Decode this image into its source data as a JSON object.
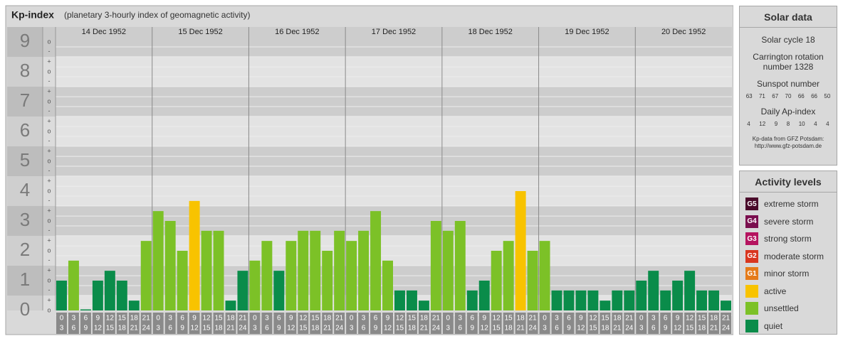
{
  "chart_data": {
    "type": "bar",
    "title": "Kp-index",
    "subtitle": "(planetary 3-hourly index of geomagnetic activity)",
    "ylim": [
      0,
      9.5
    ],
    "yticks": [
      0,
      1,
      2,
      3,
      4,
      5,
      6,
      7,
      8,
      9
    ],
    "minor_ticks": [
      {
        "value": 9,
        "label": "o"
      },
      {
        "value": 8.67,
        "label": "-"
      },
      {
        "value": 8.33,
        "label": "+"
      },
      {
        "value": 8,
        "label": "o"
      },
      {
        "value": 7.67,
        "label": "-"
      },
      {
        "value": 7.33,
        "label": "+"
      },
      {
        "value": 7,
        "label": "o"
      },
      {
        "value": 6.67,
        "label": "-"
      },
      {
        "value": 6.33,
        "label": "+"
      },
      {
        "value": 6,
        "label": "o"
      },
      {
        "value": 5.67,
        "label": "-"
      },
      {
        "value": 5.33,
        "label": "+"
      },
      {
        "value": 5,
        "label": "o"
      },
      {
        "value": 4.67,
        "label": "-"
      },
      {
        "value": 4.33,
        "label": "+"
      },
      {
        "value": 4,
        "label": "o"
      },
      {
        "value": 3.67,
        "label": "-"
      },
      {
        "value": 3.33,
        "label": "+"
      },
      {
        "value": 3,
        "label": "o"
      },
      {
        "value": 2.67,
        "label": "-"
      },
      {
        "value": 2.33,
        "label": "+"
      },
      {
        "value": 2,
        "label": "o"
      },
      {
        "value": 1.67,
        "label": "-"
      },
      {
        "value": 1.33,
        "label": "+"
      },
      {
        "value": 1,
        "label": "o"
      },
      {
        "value": 0.67,
        "label": "-"
      },
      {
        "value": 0.33,
        "label": "+"
      },
      {
        "value": 0,
        "label": "o"
      }
    ],
    "hour_labels": [
      [
        "0",
        "3"
      ],
      [
        "3",
        "6"
      ],
      [
        "6",
        "9"
      ],
      [
        "9",
        "12"
      ],
      [
        "12",
        "15"
      ],
      [
        "15",
        "18"
      ],
      [
        "18",
        "21"
      ],
      [
        "21",
        "24"
      ]
    ],
    "days": [
      {
        "date": "14 Dec 1952",
        "values": [
          1,
          1.67,
          0,
          1,
          1.33,
          1,
          0.33,
          2.33
        ],
        "colors": [
          "#0a8c4a",
          "#7cc127",
          "#0a8c4a",
          "#0a8c4a",
          "#0a8c4a",
          "#0a8c4a",
          "#0a8c4a",
          "#7cc127"
        ]
      },
      {
        "date": "15 Dec 1952",
        "values": [
          3.33,
          3,
          2,
          3.67,
          2.67,
          2.67,
          0.33,
          1.33
        ],
        "colors": [
          "#7cc127",
          "#7cc127",
          "#7cc127",
          "#f8c300",
          "#7cc127",
          "#7cc127",
          "#0a8c4a",
          "#0a8c4a"
        ]
      },
      {
        "date": "16 Dec 1952",
        "values": [
          1.67,
          2.33,
          1.33,
          2.33,
          2.67,
          2.67,
          2,
          2.67
        ],
        "colors": [
          "#7cc127",
          "#7cc127",
          "#0a8c4a",
          "#7cc127",
          "#7cc127",
          "#7cc127",
          "#7cc127",
          "#7cc127"
        ]
      },
      {
        "date": "17 Dec 1952",
        "values": [
          2.33,
          2.67,
          3.33,
          1.67,
          0.67,
          0.67,
          0.33,
          3
        ],
        "colors": [
          "#7cc127",
          "#7cc127",
          "#7cc127",
          "#7cc127",
          "#0a8c4a",
          "#0a8c4a",
          "#0a8c4a",
          "#7cc127"
        ]
      },
      {
        "date": "18 Dec 1952",
        "values": [
          2.67,
          3,
          0.67,
          1,
          2,
          2.33,
          4,
          2
        ],
        "colors": [
          "#7cc127",
          "#7cc127",
          "#0a8c4a",
          "#0a8c4a",
          "#7cc127",
          "#7cc127",
          "#f8c300",
          "#7cc127"
        ]
      },
      {
        "date": "19 Dec 1952",
        "values": [
          2.33,
          0.67,
          0.67,
          0.67,
          0.67,
          0.33,
          0.67,
          0.67
        ],
        "colors": [
          "#7cc127",
          "#0a8c4a",
          "#0a8c4a",
          "#0a8c4a",
          "#0a8c4a",
          "#0a8c4a",
          "#0a8c4a",
          "#0a8c4a"
        ]
      },
      {
        "date": "20 Dec 1952",
        "values": [
          1,
          1.33,
          0.67,
          1,
          1.33,
          0.67,
          0.67,
          0.33
        ],
        "colors": [
          "#0a8c4a",
          "#0a8c4a",
          "#0a8c4a",
          "#0a8c4a",
          "#0a8c4a",
          "#0a8c4a",
          "#0a8c4a",
          "#0a8c4a"
        ]
      }
    ]
  },
  "solar_data": {
    "title": "Solar data",
    "cycle": "Solar cycle 18",
    "rotation": "Carrington rotation number 1328",
    "sunspot_title": "Sunspot number",
    "sunspot_numbers": [
      63,
      71,
      67,
      70,
      66,
      66,
      50
    ],
    "ap_title": "Daily Ap-index",
    "ap_values": [
      4,
      12,
      9,
      8,
      10,
      4,
      4
    ],
    "source": "Kp-data from GFZ Potsdam:",
    "source_url": "http://www.gfz-potsdam.de"
  },
  "activity_levels": {
    "title": "Activity levels",
    "items": [
      {
        "code": "G5",
        "label": "extreme storm",
        "color": "#4a0a2a"
      },
      {
        "code": "G4",
        "label": "severe storm",
        "color": "#7a0f4e"
      },
      {
        "code": "G3",
        "label": "strong storm",
        "color": "#b5135f"
      },
      {
        "code": "G2",
        "label": "moderate storm",
        "color": "#d9361f"
      },
      {
        "code": "G1",
        "label": "minor storm",
        "color": "#e57b1a"
      },
      {
        "label": "active",
        "color": "#f8c300"
      },
      {
        "label": "unsettled",
        "color": "#7cc127"
      },
      {
        "label": "quiet",
        "color": "#0a8c4a"
      }
    ]
  }
}
